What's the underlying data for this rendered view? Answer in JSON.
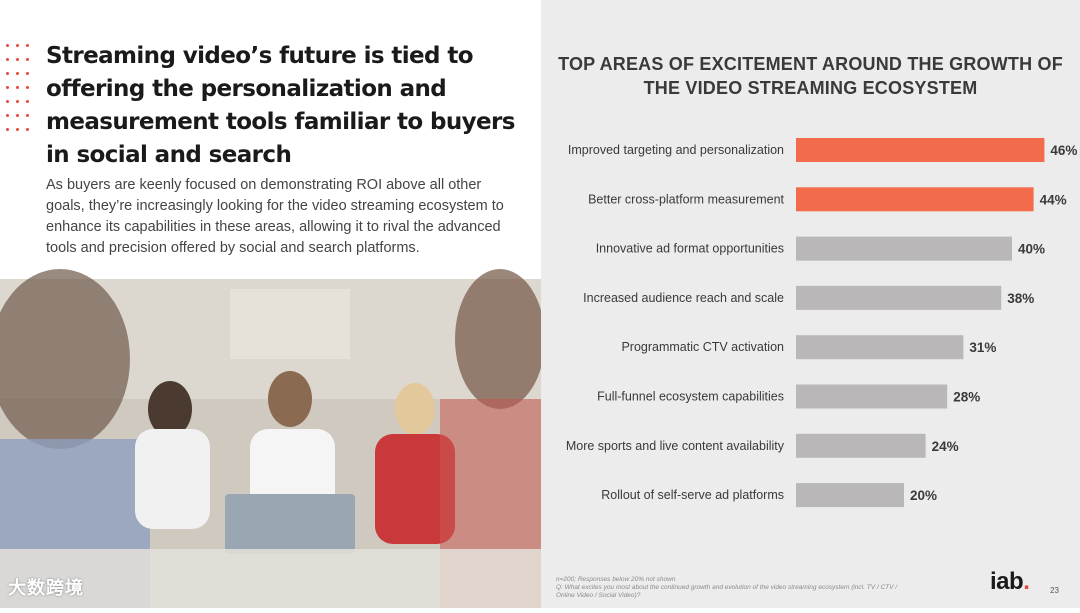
{
  "left": {
    "headline": "Streaming video’s future is tied to offering the personalization and measurement tools familiar to buyers in social and search",
    "body": "As buyers are keenly focused on demonstrating ROI above all other goals, they’re increasingly looking for the video streaming ecosystem to enhance its capabilities in these areas, allowing it to rival the advanced tools and precision offered by social and search platforms.",
    "watermark": "大数跨境"
  },
  "chart_data": {
    "type": "bar",
    "orientation": "horizontal",
    "title": "TOP AREAS OF EXCITEMENT AROUND THE GROWTH OF THE VIDEO STREAMING ECOSYSTEM",
    "categories": [
      "Improved targeting and personalization",
      "Better cross-platform measurement",
      "Innovative ad format opportunities",
      "Increased audience reach and scale",
      "Programmatic CTV activation",
      "Full-funnel ecosystem capabilities",
      "More sports and live content availability",
      "Rollout of self-serve ad platforms"
    ],
    "values": [
      46,
      44,
      40,
      38,
      31,
      28,
      24,
      20
    ],
    "value_labels": [
      "46%",
      "44%",
      "40%",
      "38%",
      "31%",
      "28%",
      "24%",
      "20%"
    ],
    "highlight_count": 2,
    "colors": {
      "highlight": "#f26b4b",
      "default": "#b9b7b7"
    },
    "xlim": [
      0,
      50
    ]
  },
  "footnote": "n=200; Responses below 20% not shown\nQ: What excites you most about the continued growth and evolution of the video streaming ecosystem (incl. TV / CTV / Online Video / Social Video)?",
  "logo": {
    "text": "iab",
    "dot": "."
  },
  "page_number": "23"
}
